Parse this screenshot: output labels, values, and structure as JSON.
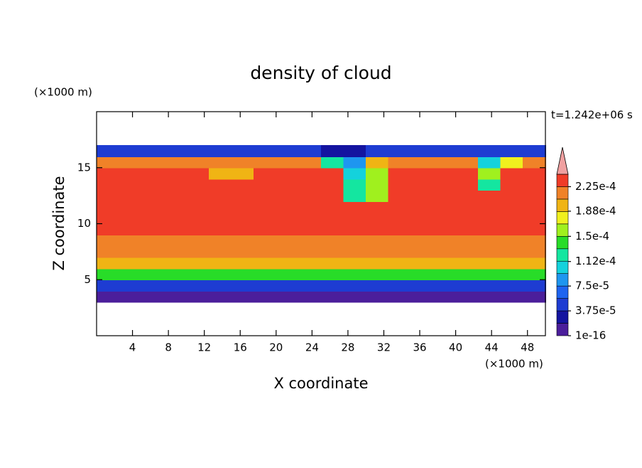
{
  "chart_data": {
    "type": "contour",
    "title": "density of cloud",
    "x_label": "X coordinate",
    "y_label": "Z coordinate",
    "x_unit": "(×1000 m)",
    "y_unit": "(×1000 m)",
    "time_label": "t=1.242e+06 s",
    "xlim": [
      0,
      50
    ],
    "ylim": [
      0,
      20
    ],
    "xticks": [
      4,
      8,
      12,
      16,
      20,
      24,
      28,
      32,
      36,
      40,
      44,
      48
    ],
    "yticks": [
      5,
      10,
      15
    ],
    "x": [
      1.25,
      3.75,
      6.25,
      8.75,
      11.25,
      13.75,
      16.25,
      18.75,
      21.25,
      23.75,
      26.25,
      28.75,
      31.25,
      33.75,
      36.25,
      38.75,
      41.25,
      43.75,
      46.25,
      48.75
    ],
    "y": [
      3.5,
      4.5,
      5.5,
      6.5,
      7.5,
      8.5,
      9.5,
      10.5,
      11.5,
      12.5,
      13.5,
      14.5,
      15.5,
      16.5
    ],
    "z": [
      [
        1.2e-05,
        1.2e-05,
        1.2e-05,
        1.2e-05,
        1.2e-05,
        1.2e-05,
        1.2e-05,
        1.2e-05,
        1.2e-05,
        1.2e-05,
        1.2e-05,
        1.2e-05,
        1.2e-05,
        1.2e-05,
        1.2e-05,
        1.2e-05,
        1.2e-05,
        1.2e-05,
        1.2e-05,
        1.2e-05
      ],
      [
        5e-05,
        5e-05,
        5e-05,
        5e-05,
        5e-05,
        5e-05,
        5e-05,
        5e-05,
        5e-05,
        5e-05,
        5e-05,
        5e-05,
        5e-05,
        5e-05,
        5e-05,
        5e-05,
        5e-05,
        5e-05,
        5e-05,
        5e-05
      ],
      [
        0.00014,
        0.00014,
        0.00014,
        0.00014,
        0.00014,
        0.00014,
        0.00014,
        0.00014,
        0.00014,
        0.00014,
        0.00014,
        0.00014,
        0.00014,
        0.00014,
        0.00014,
        0.00014,
        0.00014,
        0.00014,
        0.00014,
        0.00014
      ],
      [
        0.00019,
        0.00019,
        0.00019,
        0.00019,
        0.00019,
        0.00019,
        0.00019,
        0.00019,
        0.00019,
        0.00019,
        0.00019,
        0.00019,
        0.00019,
        0.00019,
        0.00019,
        0.00019,
        0.00019,
        0.00019,
        0.00019,
        0.00019
      ],
      [
        0.00021,
        0.00021,
        0.00021,
        0.00021,
        0.00021,
        0.00021,
        0.00021,
        0.00021,
        0.00021,
        0.00021,
        0.00021,
        0.00021,
        0.00021,
        0.00021,
        0.00021,
        0.00021,
        0.00021,
        0.00021,
        0.00021,
        0.00021
      ],
      [
        0.00022,
        0.00022,
        0.00022,
        0.00022,
        0.00022,
        0.00022,
        0.00022,
        0.00022,
        0.00022,
        0.00022,
        0.00022,
        0.00022,
        0.00022,
        0.00022,
        0.00022,
        0.00022,
        0.00022,
        0.00022,
        0.00022,
        0.00022
      ],
      [
        0.00023,
        0.00023,
        0.00023,
        0.00023,
        0.00023,
        0.00023,
        0.00023,
        0.00023,
        0.00023,
        0.00023,
        0.00023,
        0.00023,
        0.00023,
        0.00023,
        0.00023,
        0.00023,
        0.00023,
        0.00023,
        0.00023,
        0.00023
      ],
      [
        0.00023,
        0.00023,
        0.00023,
        0.00023,
        0.00023,
        0.00023,
        0.00023,
        0.00023,
        0.00023,
        0.00023,
        0.00023,
        0.00023,
        0.00023,
        0.00023,
        0.00023,
        0.00023,
        0.00023,
        0.00023,
        0.00023,
        0.00023
      ],
      [
        0.00023,
        0.00023,
        0.00023,
        0.00023,
        0.00023,
        0.00023,
        0.00023,
        0.00023,
        0.00023,
        0.00023,
        0.00023,
        0.00023,
        0.00023,
        0.00023,
        0.00023,
        0.00023,
        0.00023,
        0.00023,
        0.00023,
        0.00023
      ],
      [
        0.00023,
        0.00023,
        0.00023,
        0.00023,
        0.00023,
        0.00023,
        0.00023,
        0.00023,
        0.00023,
        0.00023,
        0.00023,
        0.00012,
        0.00016,
        0.00023,
        0.00023,
        0.00023,
        0.00023,
        0.00023,
        0.00023,
        0.00023
      ],
      [
        0.00023,
        0.00023,
        0.00023,
        0.00023,
        0.00023,
        0.00023,
        0.00023,
        0.00023,
        0.00023,
        0.00023,
        0.00023,
        0.00012,
        0.00016,
        0.00023,
        0.00023,
        0.00023,
        0.00023,
        0.00013,
        0.00023,
        0.00023
      ],
      [
        0.00023,
        0.00023,
        0.00023,
        0.00023,
        0.00023,
        0.00019,
        0.00019,
        0.00023,
        0.00023,
        0.00023,
        0.00023,
        0.0001,
        0.00015,
        0.00023,
        0.00023,
        0.00023,
        0.00023,
        0.00015,
        0.00023,
        0.00023
      ],
      [
        0.00022,
        0.00022,
        0.00022,
        0.00022,
        0.00021,
        0.00021,
        0.00021,
        0.00021,
        0.00021,
        0.00021,
        0.00012,
        9e-05,
        0.0002,
        0.00021,
        0.00021,
        0.00021,
        0.00021,
        0.0001,
        0.00018,
        0.00021
      ],
      [
        4e-05,
        4e-05,
        4e-05,
        4e-05,
        4e-05,
        4e-05,
        4e-05,
        4e-05,
        4e-05,
        4e-05,
        2e-05,
        2e-05,
        4e-05,
        4e-05,
        4e-05,
        4e-05,
        4e-05,
        4e-05,
        4e-05,
        4e-05
      ]
    ],
    "levels": [
      1e-16,
      1.875e-05,
      3.75e-05,
      5.625e-05,
      7.5e-05,
      9.375e-05,
      0.0001125,
      0.00013125,
      0.00015,
      0.00016875,
      0.0001875,
      0.00020625,
      0.000225,
      0.00024375
    ],
    "colors": [
      "#4b1e9b",
      "#1414a0",
      "#1e3cd2",
      "#1e64f0",
      "#1e96f0",
      "#14d2dc",
      "#14e6a0",
      "#28dc28",
      "#a0f01e",
      "#f0f01e",
      "#f0b414",
      "#f08228",
      "#f03c28"
    ],
    "over_color": "#f0a0a0",
    "colorbar_ticks": [
      1e-16,
      {
        "value": 3.75e-05,
        "label": "3.75e-5"
      },
      {
        "value": 7.5e-05,
        "label": "7.5e-5"
      },
      {
        "value": 0.000112,
        "label": "1.12e-4"
      },
      {
        "value": 0.00015,
        "label": "1.5e-4"
      },
      {
        "value": 0.000188,
        "label": "1.88e-4"
      },
      {
        "value": 0.000225,
        "label": "2.25e-4"
      }
    ]
  }
}
